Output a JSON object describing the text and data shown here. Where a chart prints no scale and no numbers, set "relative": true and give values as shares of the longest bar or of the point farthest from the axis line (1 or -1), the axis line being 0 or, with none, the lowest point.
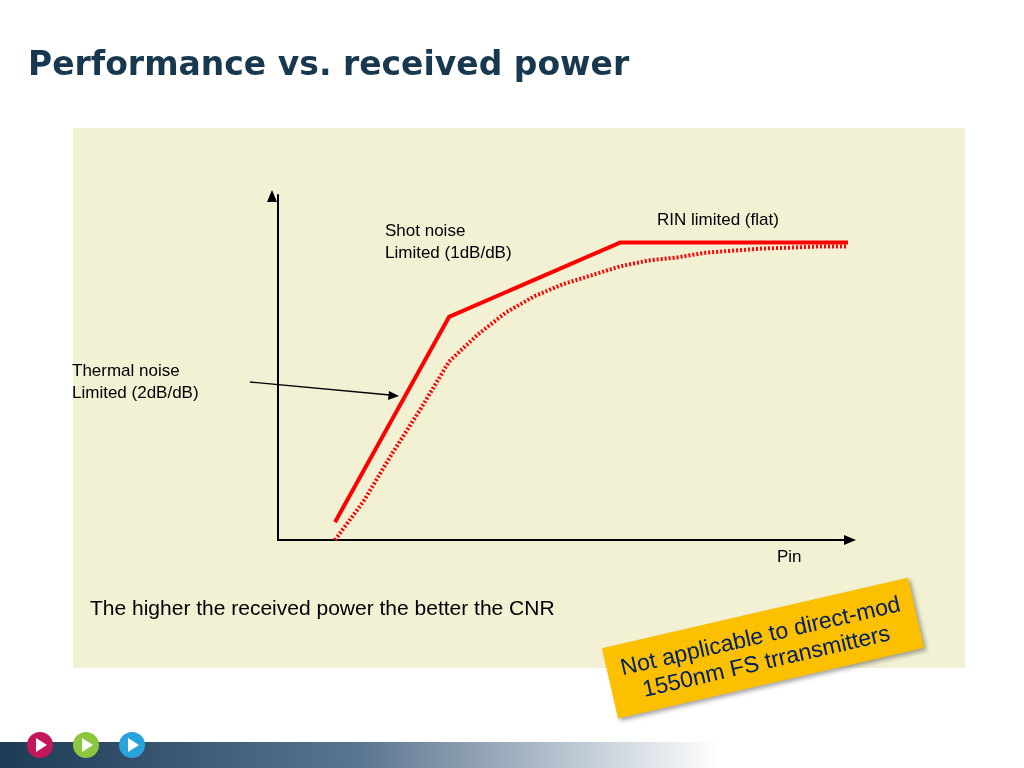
{
  "chart_data": {
    "type": "line",
    "title": "Performance vs. received power",
    "xlabel": "Pin",
    "relative": true,
    "marker": "none",
    "categories": [
      null,
      null,
      null,
      null,
      null,
      null,
      null,
      null,
      null,
      null,
      null,
      null,
      null,
      null,
      null,
      null,
      null,
      null,
      null,
      null,
      null
    ],
    "series": [
      {
        "color": "#ff0000",
        "line_style": "solid",
        "values": [
          null,
          null,
          0.06,
          null,
          null,
          null,
          0.75,
          null,
          null,
          null,
          null,
          null,
          1,
          null,
          null,
          null,
          null,
          null,
          null,
          null,
          1
        ]
      },
      {
        "color": "#ff0000",
        "line_style": "dotted",
        "values": [
          null,
          null,
          0,
          0.13,
          0.29,
          0.44,
          0.6,
          0.69,
          0.765,
          0.82,
          0.86,
          0.89,
          0.92,
          0.94,
          0.95,
          0.966,
          0.973,
          0.98,
          0.983,
          0.987,
          0.987
        ]
      }
    ],
    "annotations": [
      "Shot noise\nLimited (1dB/dB)",
      "RIN limited (flat)",
      "Thermal noise\nLimited (2dB/dB)",
      "The higher the received power the better the CNR",
      "Not applicable to direct-mod\n1550nm FS trransmitters"
    ]
  }
}
